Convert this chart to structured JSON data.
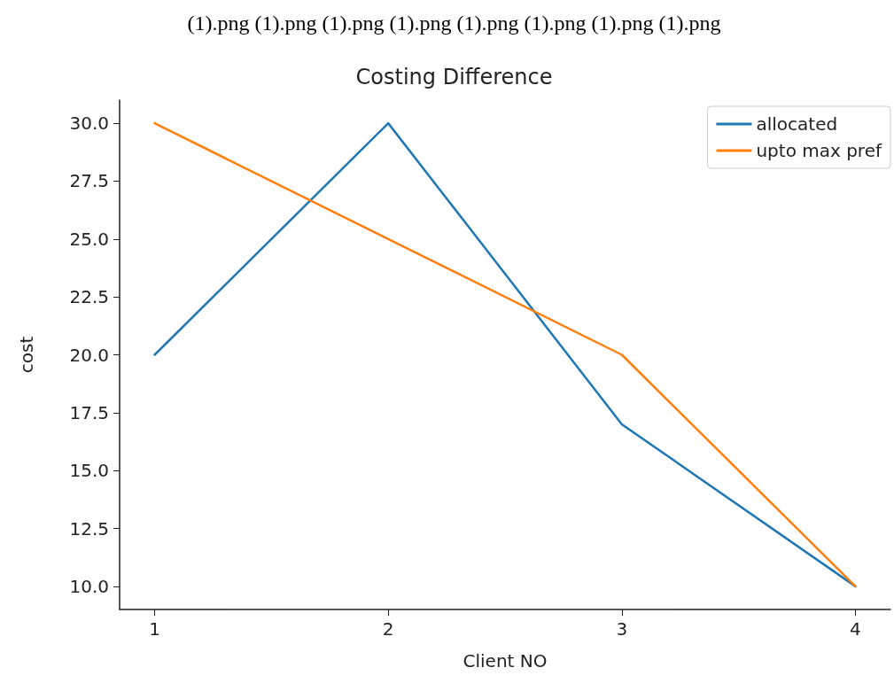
{
  "chart_data": {
    "type": "line",
    "title": "Costing Difference",
    "xlabel": "Client NO",
    "ylabel": "cost",
    "annotations": [
      "(1).png (1).png (1).png (1).png (1).png (1).png (1).png (1).png"
    ],
    "x": [
      1,
      2,
      3,
      4
    ],
    "series": [
      {
        "name": "allocated",
        "color": "#1f77b4",
        "values": [
          20,
          30,
          17,
          10
        ]
      },
      {
        "name": "upto max pref",
        "color": "#ff7f0e",
        "values": [
          30,
          25,
          20,
          10
        ]
      }
    ],
    "xlim": [
      0.85,
      4.15
    ],
    "xticks": [
      1,
      2,
      3,
      4
    ],
    "ylim": [
      9,
      31
    ],
    "yticks": [
      {
        "value": 10,
        "label": "10.0"
      },
      {
        "value": 12.5,
        "label": "12.5"
      },
      {
        "value": 15,
        "label": "15.0"
      },
      {
        "value": 17.5,
        "label": "17.5"
      },
      {
        "value": 20,
        "label": "20.0"
      },
      {
        "value": 22.5,
        "label": "22.5"
      },
      {
        "value": 25,
        "label": "25.0"
      },
      {
        "value": 27.5,
        "label": "27.5"
      },
      {
        "value": 30,
        "label": "30.0"
      }
    ],
    "grid": false,
    "legend": "top right",
    "marker": "none",
    "line_style": "solid"
  }
}
